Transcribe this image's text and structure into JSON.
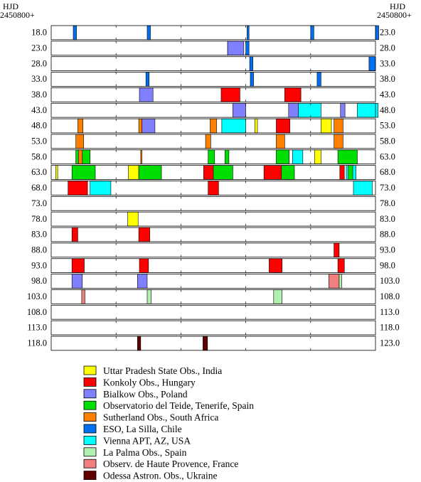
{
  "chart_data": {
    "type": "timeline",
    "header_left": [
      "HJD",
      "2450800+"
    ],
    "header_right": [
      "HJD",
      "2450800+"
    ],
    "row_span_days": 5,
    "left_labels": [
      "18.0",
      "23.0",
      "28.0",
      "33.0",
      "38.0",
      "43.0",
      "48.0",
      "53.0",
      "58.0",
      "63.0",
      "68.0",
      "73.0",
      "78.0",
      "83.0",
      "88.0",
      "93.0",
      "98.0",
      "103.0",
      "108.0",
      "113.0",
      "118.0"
    ],
    "right_labels": [
      "23.0",
      "28.0",
      "33.0",
      "38.0",
      "43.0",
      "48.0",
      "53.0",
      "58.0",
      "63.0",
      "68.0",
      "73.0",
      "78.0",
      "83.0",
      "88.0",
      "93.0",
      "98.0",
      "103.0",
      "108.0",
      "113.0",
      "118.0",
      "123.0"
    ],
    "observatories": [
      {
        "key": "uttar",
        "name": "Uttar Pradesh State Obs., India",
        "color": "#ffff00"
      },
      {
        "key": "konkoly",
        "name": "Konkoly Obs., Hungary",
        "color": "#ff0000"
      },
      {
        "key": "bialkow",
        "name": "Bialkow Obs., Poland",
        "color": "#8080ff"
      },
      {
        "key": "teide",
        "name": "Observatorio del Teide, Tenerife, Spain",
        "color": "#00dd00"
      },
      {
        "key": "sutherland",
        "name": "Sutherland Obs., South Africa",
        "color": "#ff8000"
      },
      {
        "key": "eso",
        "name": "ESO, La Silla, Chile",
        "color": "#0070f0"
      },
      {
        "key": "vienna",
        "name": "Vienna APT, AZ, USA",
        "color": "#00ffff"
      },
      {
        "key": "lapalma",
        "name": "La Palma Obs., Spain",
        "color": "#b0f0b0"
      },
      {
        "key": "ohp",
        "name": "Observ. de Haute Provence, France",
        "color": "#f08080"
      },
      {
        "key": "odessa",
        "name": "Odessa Astron. Obs., Ukraine",
        "color": "#600000"
      }
    ],
    "segments": [
      {
        "row": 0,
        "obs": "eso",
        "start": 0.34,
        "end": 0.39
      },
      {
        "row": 0,
        "obs": "eso",
        "start": 1.48,
        "end": 1.53
      },
      {
        "row": 0,
        "obs": "eso",
        "start": 3.02,
        "end": 3.05
      },
      {
        "row": 0,
        "obs": "eso",
        "start": 4.0,
        "end": 4.05
      },
      {
        "row": 0,
        "obs": "eso",
        "start": 5.0,
        "end": 5.05
      },
      {
        "row": 1,
        "obs": "konkoly",
        "start": 2.72,
        "end": 2.92
      },
      {
        "row": 1,
        "obs": "bialkow",
        "start": 2.72,
        "end": 2.97
      },
      {
        "row": 1,
        "obs": "eso",
        "start": 3.0,
        "end": 3.05
      },
      {
        "row": 2,
        "obs": "eso",
        "start": 3.06,
        "end": 3.11
      },
      {
        "row": 2,
        "obs": "eso",
        "start": 4.9,
        "end": 5.0
      },
      {
        "row": 3,
        "obs": "eso",
        "start": 1.46,
        "end": 1.51
      },
      {
        "row": 3,
        "obs": "eso",
        "start": 3.07,
        "end": 3.12
      },
      {
        "row": 3,
        "obs": "eso",
        "start": 4.1,
        "end": 4.16
      },
      {
        "row": 4,
        "obs": "bialkow",
        "start": 1.36,
        "end": 1.57
      },
      {
        "row": 4,
        "obs": "konkoly",
        "start": 2.62,
        "end": 2.91
      },
      {
        "row": 4,
        "obs": "konkoly",
        "start": 3.6,
        "end": 3.85
      },
      {
        "row": 5,
        "obs": "bialkow",
        "start": 2.8,
        "end": 3.0
      },
      {
        "row": 5,
        "obs": "bialkow",
        "start": 3.66,
        "end": 3.81
      },
      {
        "row": 5,
        "obs": "vienna",
        "start": 3.81,
        "end": 4.16
      },
      {
        "row": 5,
        "obs": "bialkow",
        "start": 4.46,
        "end": 4.53
      },
      {
        "row": 5,
        "obs": "vienna",
        "start": 4.72,
        "end": 5.04
      },
      {
        "row": 6,
        "obs": "sutherland",
        "start": 0.41,
        "end": 0.49
      },
      {
        "row": 6,
        "obs": "sutherland",
        "start": 1.35,
        "end": 1.4
      },
      {
        "row": 6,
        "obs": "bialkow",
        "start": 1.4,
        "end": 1.6
      },
      {
        "row": 6,
        "obs": "sutherland",
        "start": 2.45,
        "end": 2.55
      },
      {
        "row": 6,
        "obs": "vienna",
        "start": 2.63,
        "end": 3.0
      },
      {
        "row": 6,
        "obs": "uttar",
        "start": 3.14,
        "end": 3.18
      },
      {
        "row": 6,
        "obs": "konkoly",
        "start": 3.47,
        "end": 3.68
      },
      {
        "row": 6,
        "obs": "uttar",
        "start": 4.16,
        "end": 4.32
      },
      {
        "row": 6,
        "obs": "sutherland",
        "start": 4.36,
        "end": 4.5
      },
      {
        "row": 7,
        "obs": "sutherland",
        "start": 0.38,
        "end": 0.5
      },
      {
        "row": 7,
        "obs": "sutherland",
        "start": 2.38,
        "end": 2.46
      },
      {
        "row": 7,
        "obs": "sutherland",
        "start": 3.47,
        "end": 3.6
      },
      {
        "row": 7,
        "obs": "sutherland",
        "start": 4.36,
        "end": 4.5
      },
      {
        "row": 8,
        "obs": "teide",
        "start": 0.38,
        "end": 0.42
      },
      {
        "row": 8,
        "obs": "sutherland",
        "start": 0.42,
        "end": 0.48
      },
      {
        "row": 8,
        "obs": "teide",
        "start": 0.48,
        "end": 0.6
      },
      {
        "row": 8,
        "obs": "sutherland",
        "start": 1.38,
        "end": 1.4
      },
      {
        "row": 8,
        "obs": "teide",
        "start": 2.42,
        "end": 2.52
      },
      {
        "row": 8,
        "obs": "teide",
        "start": 2.68,
        "end": 2.74
      },
      {
        "row": 8,
        "obs": "teide",
        "start": 3.47,
        "end": 3.67
      },
      {
        "row": 8,
        "obs": "vienna",
        "start": 3.72,
        "end": 3.88
      },
      {
        "row": 8,
        "obs": "uttar",
        "start": 4.06,
        "end": 4.16
      },
      {
        "row": 8,
        "obs": "teide",
        "start": 4.42,
        "end": 4.72
      },
      {
        "row": 9,
        "obs": "uttar",
        "start": 0.07,
        "end": 0.1
      },
      {
        "row": 9,
        "obs": "teide",
        "start": 0.32,
        "end": 0.68
      },
      {
        "row": 9,
        "obs": "uttar",
        "start": 1.19,
        "end": 1.35
      },
      {
        "row": 9,
        "obs": "konkoly",
        "start": 1.41,
        "end": 1.52
      },
      {
        "row": 9,
        "obs": "teide",
        "start": 1.35,
        "end": 1.7
      },
      {
        "row": 9,
        "obs": "konkoly",
        "start": 2.35,
        "end": 2.62
      },
      {
        "row": 9,
        "obs": "teide",
        "start": 2.5,
        "end": 2.8
      },
      {
        "row": 9,
        "obs": "konkoly",
        "start": 3.28,
        "end": 3.65
      },
      {
        "row": 9,
        "obs": "teide",
        "start": 3.55,
        "end": 3.75
      },
      {
        "row": 9,
        "obs": "konkoly",
        "start": 4.45,
        "end": 4.52
      },
      {
        "row": 9,
        "obs": "vienna",
        "start": 4.55,
        "end": 4.7
      },
      {
        "row": 9,
        "obs": "teide",
        "start": 4.58,
        "end": 4.65
      },
      {
        "row": 10,
        "obs": "konkoly",
        "start": 0.26,
        "end": 0.56
      },
      {
        "row": 10,
        "obs": "vienna",
        "start": 0.6,
        "end": 0.92
      },
      {
        "row": 10,
        "obs": "konkoly",
        "start": 2.42,
        "end": 2.58
      },
      {
        "row": 10,
        "obs": "vienna",
        "start": 4.66,
        "end": 4.95
      },
      {
        "row": 12,
        "obs": "uttar",
        "start": 1.18,
        "end": 1.34
      },
      {
        "row": 13,
        "obs": "konkoly",
        "start": 0.32,
        "end": 0.41
      },
      {
        "row": 13,
        "obs": "konkoly",
        "start": 1.35,
        "end": 1.52
      },
      {
        "row": 14,
        "obs": "konkoly",
        "start": 4.36,
        "end": 4.44
      },
      {
        "row": 15,
        "obs": "konkoly",
        "start": 0.32,
        "end": 0.51
      },
      {
        "row": 15,
        "obs": "konkoly",
        "start": 1.36,
        "end": 1.5
      },
      {
        "row": 15,
        "obs": "konkoly",
        "start": 3.36,
        "end": 3.56
      },
      {
        "row": 15,
        "obs": "konkoly",
        "start": 4.42,
        "end": 4.52
      },
      {
        "row": 16,
        "obs": "bialkow",
        "start": 0.32,
        "end": 0.48
      },
      {
        "row": 16,
        "obs": "bialkow",
        "start": 1.33,
        "end": 1.48
      },
      {
        "row": 16,
        "obs": "ohp",
        "start": 4.28,
        "end": 4.44
      },
      {
        "row": 16,
        "obs": "lapalma",
        "start": 4.44,
        "end": 4.48
      },
      {
        "row": 17,
        "obs": "ohp",
        "start": 0.47,
        "end": 0.52
      },
      {
        "row": 17,
        "obs": "lapalma",
        "start": 1.48,
        "end": 1.54
      },
      {
        "row": 17,
        "obs": "lapalma",
        "start": 3.43,
        "end": 3.56
      },
      {
        "row": 20,
        "obs": "odessa",
        "start": 1.33,
        "end": 1.38
      },
      {
        "row": 20,
        "obs": "odessa",
        "start": 2.34,
        "end": 2.41
      }
    ]
  }
}
